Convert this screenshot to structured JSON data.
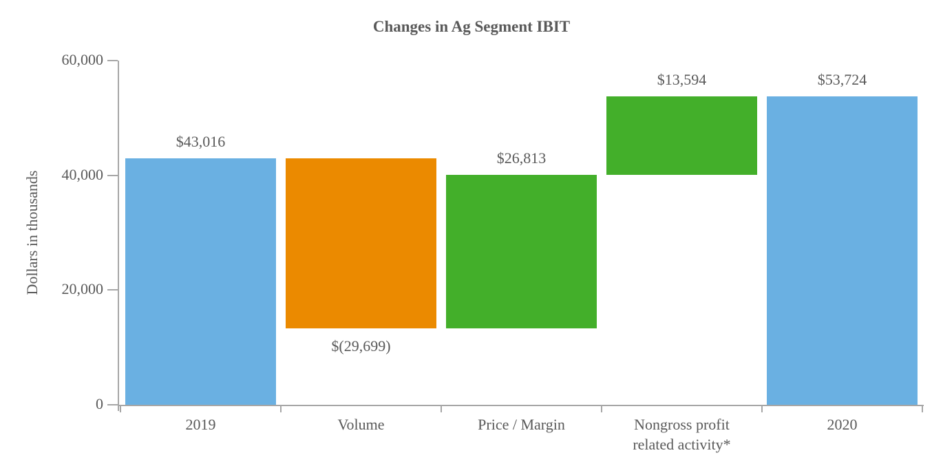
{
  "chart_data": {
    "type": "bar",
    "subtype": "waterfall",
    "title": "Changes in Ag Segment IBIT",
    "ylabel": "Dollars in thousands",
    "xlabel": "",
    "ylim": [
      0,
      60000
    ],
    "grid": false,
    "legend": false,
    "yticks": [
      {
        "value": 0,
        "label": "0"
      },
      {
        "value": 20000,
        "label": "20,000"
      },
      {
        "value": 40000,
        "label": "40,000"
      },
      {
        "value": 60000,
        "label": "60,000"
      }
    ],
    "categories": [
      "2019",
      "Volume",
      "Price / Margin",
      "Nongross profit\nrelated activity*",
      "2020"
    ],
    "bars": [
      {
        "category": "2019",
        "value": 43016,
        "low": 0,
        "high": 43016,
        "kind": "total",
        "data_label": "$43,016",
        "label_position": "above"
      },
      {
        "category": "Volume",
        "value": -29699,
        "low": 13317,
        "high": 43016,
        "kind": "decrease",
        "data_label": "$(29,699)",
        "label_position": "below"
      },
      {
        "category": "Price / Margin",
        "value": 26813,
        "low": 13317,
        "high": 40130,
        "kind": "increase",
        "data_label": "$26,813",
        "label_position": "above"
      },
      {
        "category": "Nongross profit related activity*",
        "value": 13594,
        "low": 40130,
        "high": 53724,
        "kind": "increase",
        "data_label": "$13,594",
        "label_position": "above"
      },
      {
        "category": "2020",
        "value": 53724,
        "low": 0,
        "high": 53724,
        "kind": "total",
        "data_label": "$53,724",
        "label_position": "above"
      }
    ],
    "colors": {
      "total": "#6ab0e2",
      "increase": "#43af2a",
      "decrease": "#eb8a00",
      "axis": "#a6a6a6",
      "text": "#595959"
    }
  }
}
